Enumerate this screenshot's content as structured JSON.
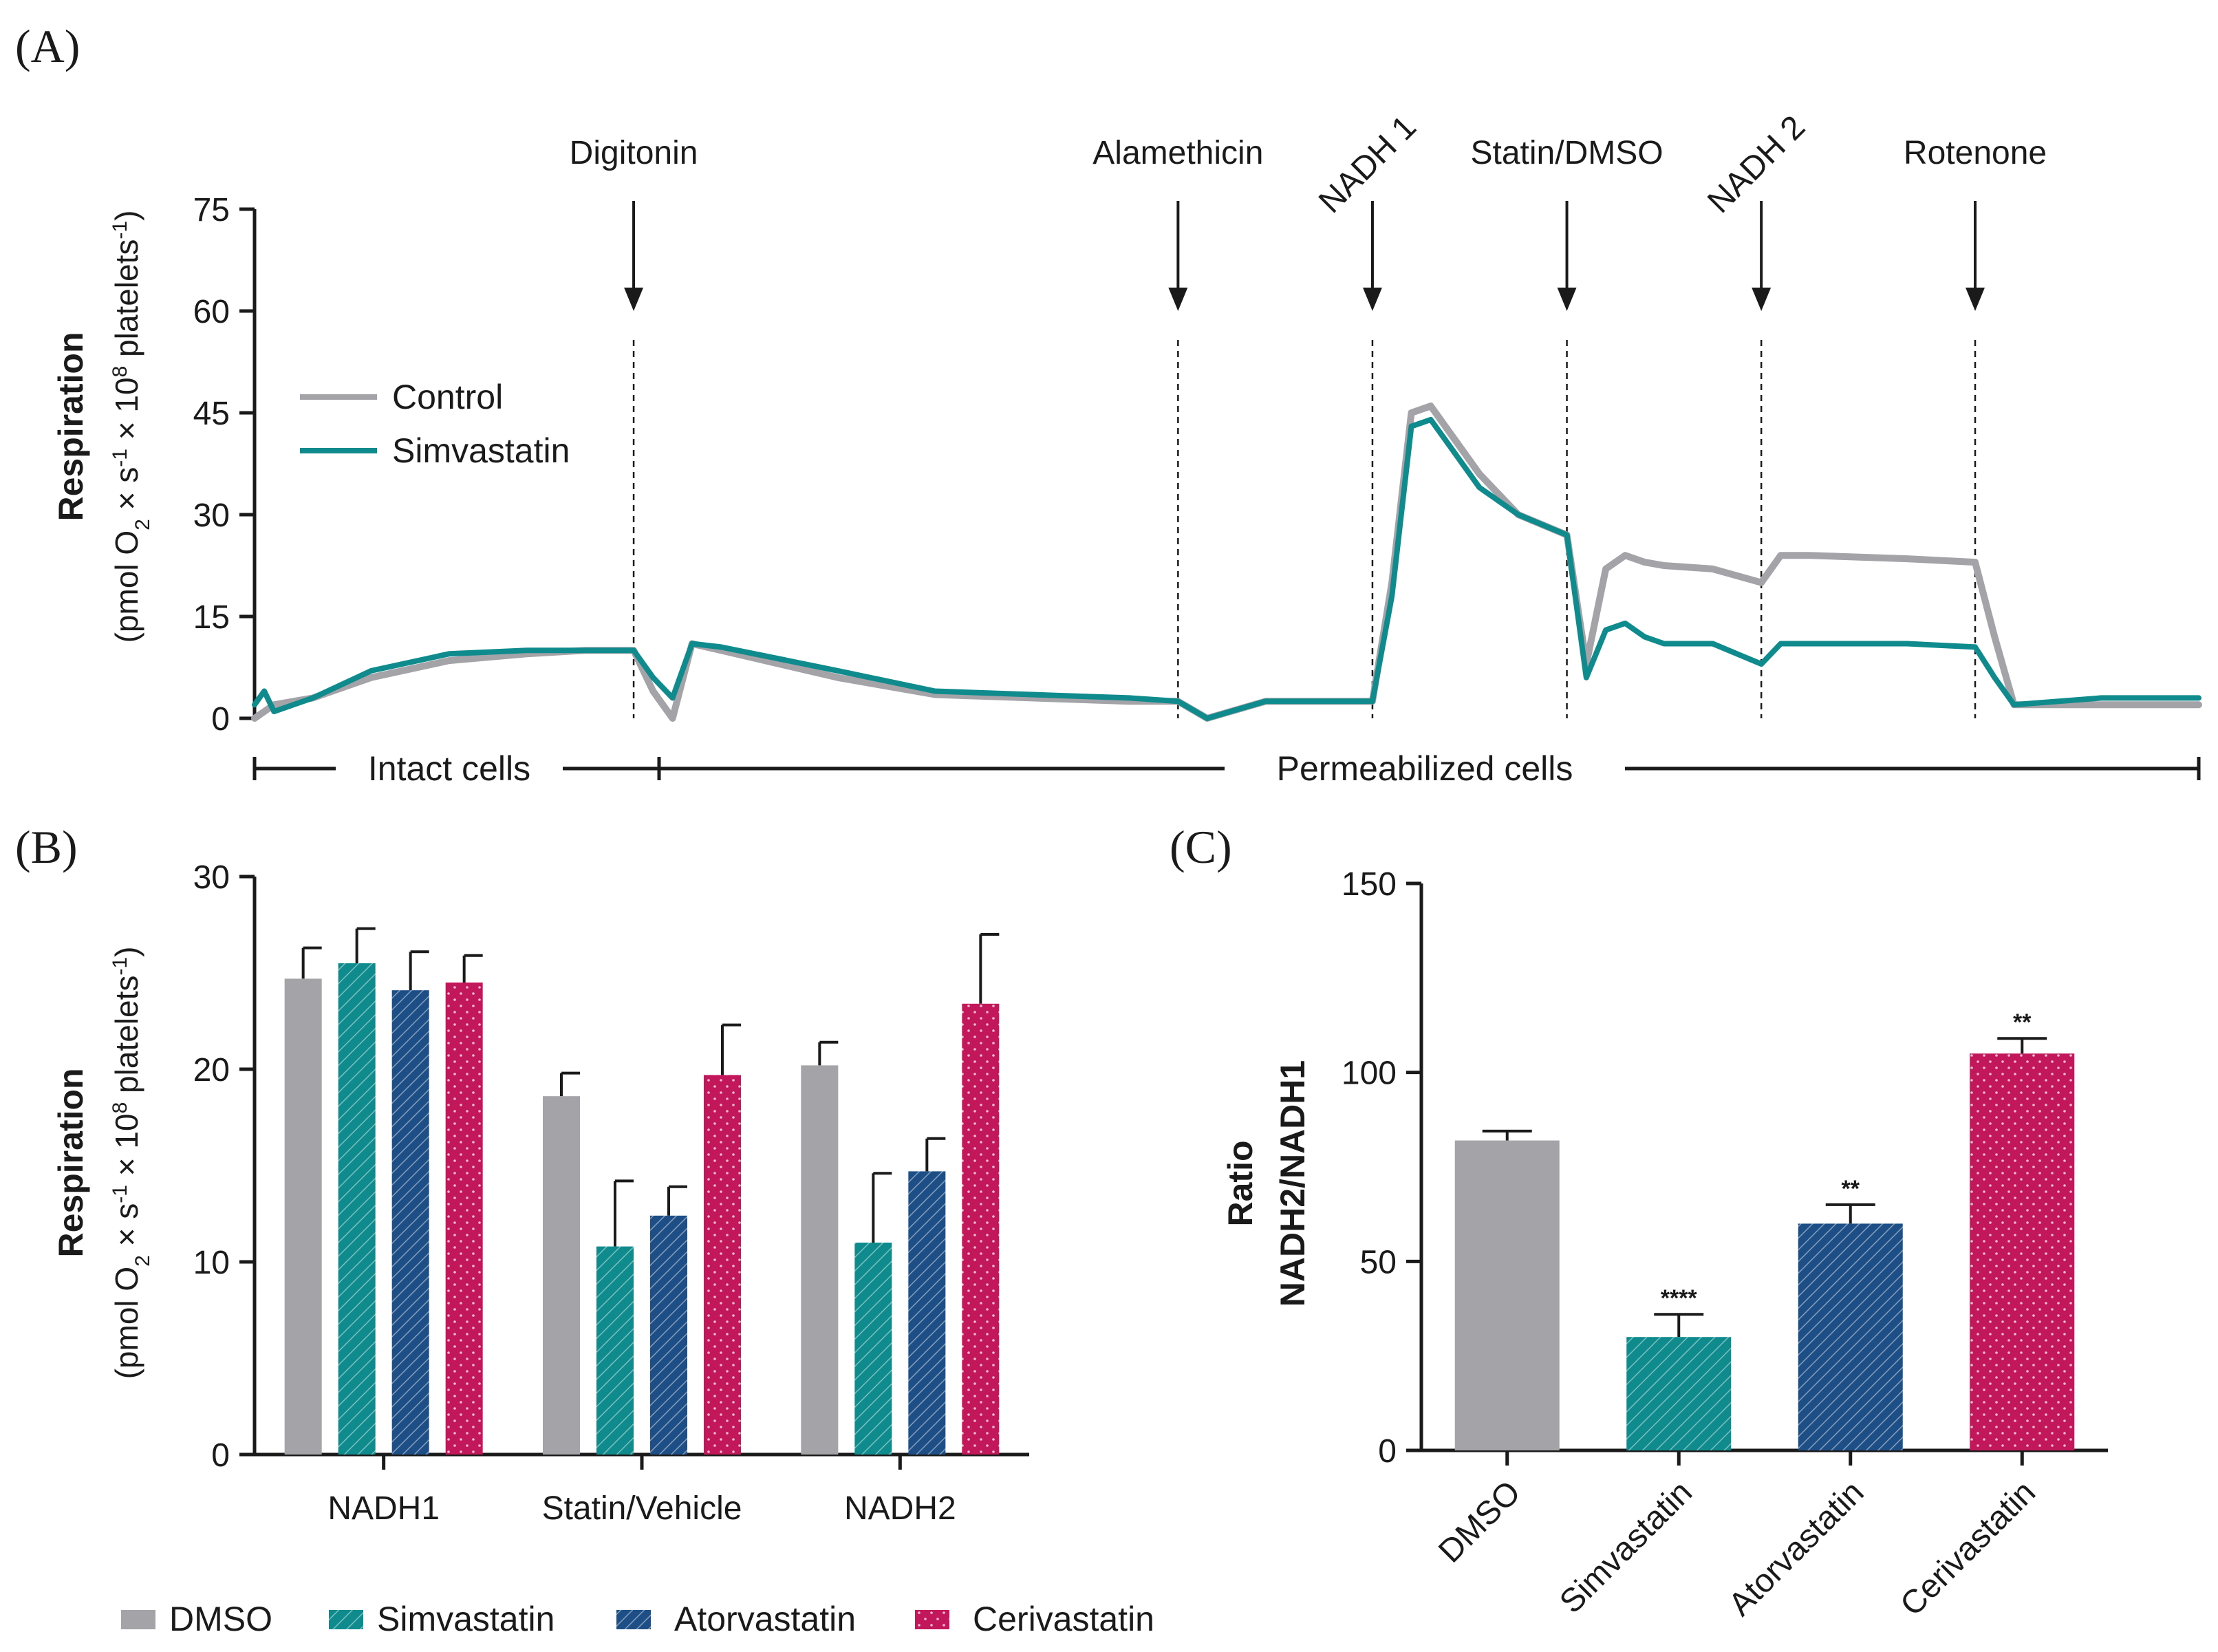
{
  "colors": {
    "control": "#a3a3a8",
    "simvastatin": "#0f8b8d",
    "dmso": "#a3a3a8",
    "atorvastatin": "#1e4e86",
    "cerivastatin": "#c2185b",
    "axis": "#1a1a1a"
  },
  "panels": {
    "a": "(A)",
    "b": "(B)",
    "c": "(C)"
  },
  "chart_data": [
    {
      "id": "A",
      "type": "line",
      "xlabel": "",
      "ylabel": "Respiration",
      "ylabel_units": "(pmol O2 × s-1 × 10^8 platelets-1)",
      "ylim": [
        0,
        75
      ],
      "yticks": [
        "0",
        "15",
        "30",
        "45",
        "60",
        "75"
      ],
      "legend": [
        "Control",
        "Simvastatin"
      ],
      "legend_position": "upper-left",
      "markers": [
        "Digitonin",
        "Alamethicin",
        "NADH 1",
        "Statin/DMSO",
        "NADH 2",
        "Rotenone"
      ],
      "marker_times": [
        19.5,
        47.5,
        57.5,
        67.5,
        77.5,
        88.5
      ],
      "phases": [
        "Intact cells",
        "Permeabilized cells"
      ],
      "x_range": [
        0,
        100
      ],
      "series": [
        {
          "name": "Control",
          "x": [
            0,
            1,
            3,
            6,
            10,
            14,
            17,
            19.5,
            20.5,
            21.5,
            22.5,
            24,
            30,
            35,
            40,
            45,
            47.5,
            49,
            52,
            55,
            57.5,
            58.5,
            59.5,
            60.5,
            61.5,
            63,
            65,
            67.5,
            68.5,
            69.5,
            70.5,
            71.5,
            72.5,
            75,
            77.5,
            78.5,
            80,
            85,
            88.5,
            89.5,
            90.5,
            95,
            100
          ],
          "y": [
            0,
            2,
            3,
            6,
            8.5,
            9.5,
            10,
            10,
            4,
            0,
            11,
            10,
            6,
            3.5,
            3,
            2.5,
            2.5,
            0,
            2.5,
            2.5,
            2.5,
            20,
            45,
            46,
            42,
            36,
            30,
            27,
            8,
            22,
            24,
            23,
            22.5,
            22,
            20,
            24,
            24,
            23.5,
            23,
            12,
            2,
            2,
            2
          ]
        },
        {
          "name": "Simvastatin",
          "x": [
            0,
            0.5,
            1,
            3,
            6,
            10,
            14,
            17,
            19.5,
            20.5,
            21.5,
            22.5,
            24,
            30,
            35,
            40,
            45,
            47.5,
            49,
            52,
            55,
            57.5,
            58.5,
            59.5,
            60.5,
            61.5,
            63,
            65,
            67.5,
            68.5,
            69.5,
            70.5,
            71.5,
            72.5,
            75,
            77.5,
            78.5,
            80,
            85,
            88.5,
            89.5,
            90.5,
            95,
            100
          ],
          "y": [
            2,
            4,
            1,
            3,
            7,
            9.5,
            10,
            10,
            10,
            6,
            3,
            11,
            10.5,
            7,
            4,
            3.5,
            3,
            2.5,
            0,
            2.5,
            2.5,
            2.5,
            18,
            43,
            44,
            40,
            34,
            30,
            27,
            6,
            13,
            14,
            12,
            11,
            11,
            8,
            11,
            11,
            11,
            10.5,
            6,
            2,
            3,
            3
          ]
        }
      ]
    },
    {
      "id": "B",
      "type": "bar",
      "ylabel": "Respiration",
      "ylabel_units": "(pmol O2 × s-1 × 10^8 platelets-1)",
      "ylim": [
        0,
        30
      ],
      "yticks": [
        "0",
        "10",
        "20",
        "30"
      ],
      "categories": [
        "NADH1",
        "Statin/Vehicle",
        "NADH2"
      ],
      "series": [
        {
          "name": "DMSO",
          "values": [
            24.7,
            18.6,
            20.2
          ],
          "errors": [
            1.6,
            1.2,
            1.2
          ]
        },
        {
          "name": "Simvastatin",
          "values": [
            25.5,
            10.8,
            11.0
          ],
          "errors": [
            1.8,
            3.4,
            3.6
          ]
        },
        {
          "name": "Atorvastatin",
          "values": [
            24.1,
            12.4,
            14.7
          ],
          "errors": [
            2.0,
            1.5,
            1.7
          ]
        },
        {
          "name": "Cerivastatin",
          "values": [
            24.5,
            19.7,
            23.4
          ],
          "errors": [
            1.4,
            2.6,
            3.6
          ]
        }
      ],
      "legend": [
        "DMSO",
        "Simvastatin",
        "Atorvastatin",
        "Cerivastatin"
      ],
      "legend_position": "bottom"
    },
    {
      "id": "C",
      "type": "bar",
      "ylabel": "Ratio",
      "ylabel2": "NADH2/NADH1",
      "ylim": [
        0,
        150
      ],
      "yticks": [
        "0",
        "50",
        "100",
        "150"
      ],
      "categories": [
        "DMSO",
        "Simvastatin",
        "Atorvastatin",
        "Cerivastatin"
      ],
      "values": [
        82,
        30,
        60,
        105
      ],
      "errors": [
        2.5,
        6,
        5,
        4
      ],
      "significance": [
        "",
        "****",
        "**",
        "**"
      ]
    }
  ]
}
